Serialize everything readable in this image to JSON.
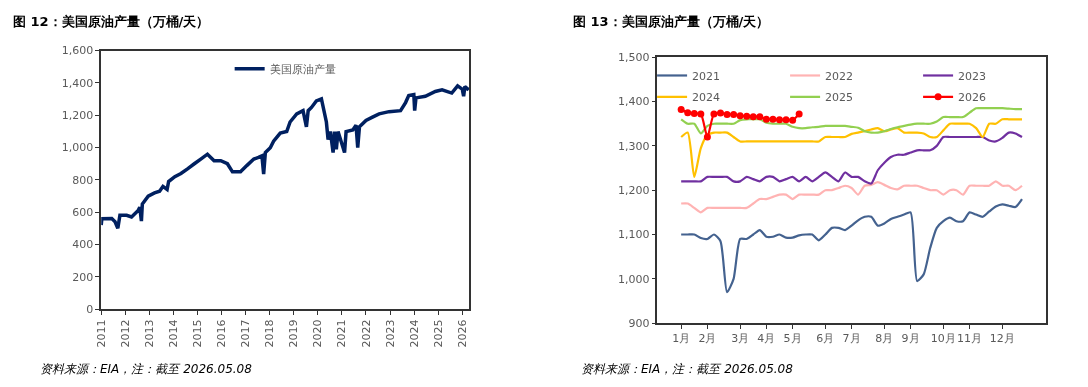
{
  "chart_data": [
    {
      "type": "line",
      "title": "图 12：美国原油产量（万桶/天）",
      "annotations": [
        "资料来源：EIA，注：截至 2026.05.08"
      ],
      "x": [
        "2011-01-01",
        "2011-01-10",
        "2011-06-10",
        "2011-07-30",
        "2011-09-10",
        "2011-10-12",
        "2012-01-22",
        "2012-04-05",
        "2012-07-15",
        "2012-08-08",
        "2012-09-02",
        "2012-09-16",
        "2012-12-14",
        "2013-03-20",
        "2013-06-05",
        "2013-07-26",
        "2013-09-27",
        "2013-10-20",
        "2014-01-22",
        "2014-04-25",
        "2014-08-08",
        "2014-11-14",
        "2015-02-20",
        "2015-06-01",
        "2015-09-10",
        "2015-12-20",
        "2016-03-30",
        "2016-06-15",
        "2016-10-15",
        "2017-01-22",
        "2017-05-05",
        "2017-07-15",
        "2017-09-05",
        "2017-10-01",
        "2017-10-27",
        "2018-01-10",
        "2018-03-01",
        "2018-06-10",
        "2018-09-16",
        "2018-11-06",
        "2019-02-15",
        "2019-05-22",
        "2019-07-12",
        "2019-08-08",
        "2019-09-27",
        "2019-12-10",
        "2020-02-25",
        "2020-05-10",
        "2020-06-05",
        "2020-07-10",
        "2020-08-20",
        "2020-09-12",
        "2020-10-08",
        "2020-11-03",
        "2021-02-10",
        "2021-03-05",
        "2021-06-15",
        "2021-08-03",
        "2021-08-29",
        "2021-09-24",
        "2022-01-01",
        "2022-04-10",
        "2022-07-20",
        "2022-12-17",
        "2023-06-10",
        "2023-08-25",
        "2023-10-12",
        "2023-12-28",
        "2024-01-10",
        "2024-01-30",
        "2024-06-20",
        "2024-11-18",
        "2025-03-01",
        "2025-07-26",
        "2025-10-23",
        "2026-01-01",
        "2026-01-22",
        "2026-02-10",
        "2026-04-10"
      ],
      "series": [
        {
          "name": "美国原油产量",
          "color": "#002060",
          "values": [
            521,
            560,
            561,
            541,
            501,
            581,
            581,
            571,
            611,
            631,
            545,
            651,
            700,
            720,
            730,
            760,
            741,
            790,
            820,
            840,
            870,
            900,
            929,
            959,
            919,
            919,
            900,
            850,
            850,
            890,
            929,
            939,
            949,
            836,
            969,
            999,
            1039,
            1089,
            1099,
            1158,
            1208,
            1228,
            1128,
            1228,
            1248,
            1288,
            1301,
            1158,
            1049,
            1099,
            969,
            1099,
            989,
            1099,
            969,
            1099,
            1109,
            1138,
            999,
            1128,
            1168,
            1188,
            1208,
            1222,
            1228,
            1278,
            1321,
            1327,
            1228,
            1307,
            1317,
            1347,
            1357,
            1337,
            1381,
            1361,
            1317,
            1377,
            1357
          ]
        }
      ],
      "xlim": [
        "2011-01-01",
        "2026-04-15"
      ],
      "xticks": [
        "2011",
        "2012",
        "2013",
        "2014",
        "2015",
        "2016",
        "2017",
        "2018",
        "2019",
        "2020",
        "2021",
        "2022",
        "2023",
        "2024",
        "2025",
        "2026"
      ],
      "ylim": [
        0,
        1600
      ],
      "yticks": [
        0,
        200,
        400,
        600,
        800,
        {
          "value": 1000,
          "label": "1,000"
        },
        {
          "value": 1200,
          "label": "1,200"
        },
        {
          "value": 1400,
          "label": "1,400"
        },
        {
          "value": 1600,
          "label": "1,600"
        }
      ],
      "legend": "top",
      "line_style": "solid"
    },
    {
      "type": "line",
      "title": "图 13：美国原油产量（万桶/天）",
      "annotations": [
        "资料来源：EIA，注：截至 2026.05.08"
      ],
      "categories": [
        "1月",
        null,
        null,
        null,
        "2月",
        null,
        null,
        null,
        null,
        "3月",
        null,
        null,
        null,
        "4月",
        null,
        null,
        null,
        "5月",
        null,
        null,
        null,
        null,
        "6月",
        null,
        null,
        null,
        "7月",
        null,
        null,
        null,
        null,
        "8月",
        null,
        null,
        null,
        "9月",
        null,
        null,
        null,
        null,
        "10月",
        null,
        null,
        null,
        "11月",
        null,
        null,
        null,
        null,
        "12月",
        null,
        null,
        null
      ],
      "series": [
        {
          "name": "2021",
          "color": "#44628f",
          "values": [
            1100,
            1100,
            1100,
            1092,
            1090,
            1100,
            1085,
            970,
            1000,
            1090,
            1090,
            1100,
            1110,
            1095,
            1095,
            1100,
            1093,
            1093,
            1098,
            1100,
            1100,
            1087,
            1100,
            1115,
            1115,
            1110,
            1120,
            1132,
            1140,
            1140,
            1120,
            1125,
            1135,
            1140,
            1145,
            1150,
            995,
            1010,
            1070,
            1115,
            1130,
            1138,
            1130,
            1130,
            1150,
            1145,
            1140,
            1152,
            1163,
            1168,
            1165,
            1162,
            1180
          ]
        },
        {
          "name": "2022",
          "color": "#ffb3b3",
          "values": [
            1170,
            1170,
            1160,
            1150,
            1160,
            1160,
            1160,
            1160,
            1160,
            1160,
            1160,
            1170,
            1180,
            1180,
            1185,
            1190,
            1190,
            1180,
            1190,
            1190,
            1190,
            1190,
            1200,
            1200,
            1205,
            1210,
            1205,
            1190,
            1210,
            1212,
            1218,
            1212,
            1205,
            1202,
            1210,
            1210,
            1210,
            1205,
            1200,
            1200,
            1190,
            1200,
            1200,
            1190,
            1210,
            1210,
            1210,
            1210,
            1220,
            1210,
            1210,
            1200,
            1210
          ]
        },
        {
          "name": "2023",
          "color": "#7030a0",
          "values": [
            1220,
            1220,
            1220,
            1220,
            1230,
            1230,
            1230,
            1230,
            1220,
            1220,
            1230,
            1225,
            1220,
            1230,
            1230,
            1220,
            1225,
            1230,
            1220,
            1230,
            1220,
            1230,
            1240,
            1230,
            1220,
            1240,
            1230,
            1230,
            1220,
            1215,
            1245,
            1262,
            1275,
            1280,
            1280,
            1285,
            1290,
            1290,
            1290,
            1300,
            1320,
            1320,
            1320,
            1320,
            1320,
            1320,
            1320,
            1312,
            1310,
            1318,
            1330,
            1328,
            1320
          ]
        },
        {
          "name": "2024",
          "color": "#ffc000",
          "values": [
            1320,
            1330,
            1230,
            1295,
            1325,
            1330,
            1330,
            1330,
            1320,
            1310,
            1310,
            1310,
            1310,
            1310,
            1310,
            1310,
            1310,
            1310,
            1310,
            1310,
            1310,
            1310,
            1320,
            1320,
            1320,
            1320,
            1327,
            1330,
            1333,
            1337,
            1340,
            1333,
            1337,
            1340,
            1330,
            1330,
            1330,
            1328,
            1320,
            1320,
            1335,
            1350,
            1350,
            1350,
            1350,
            1340,
            1320,
            1350,
            1350,
            1360,
            1360,
            1360,
            1360
          ]
        },
        {
          "name": "2025",
          "color": "#92d050",
          "values": [
            1360,
            1350,
            1350,
            1328,
            1345,
            1350,
            1350,
            1350,
            1350,
            1358,
            1360,
            1360,
            1360,
            1352,
            1350,
            1350,
            1350,
            1343,
            1340,
            1340,
            1342,
            1343,
            1345,
            1345,
            1345,
            1345,
            1343,
            1341,
            1333,
            1330,
            1330,
            1333,
            1338,
            1342,
            1345,
            1348,
            1350,
            1350,
            1350,
            1355,
            1365,
            1365,
            1365,
            1365,
            1375,
            1385,
            1385,
            1385,
            1385,
            1385,
            1384,
            1383,
            1383
          ]
        },
        {
          "name": "2026",
          "color": "#ff0000",
          "marker": "circle",
          "values": [
            1382,
            1375,
            1373,
            1372,
            1320,
            1372,
            1374,
            1371,
            1371,
            1368,
            1367,
            1366,
            1366,
            1360,
            1360,
            1359,
            1359,
            1358,
            1372,
            null,
            null,
            null,
            null,
            null,
            null,
            null,
            null,
            null,
            null,
            null,
            null,
            null,
            null,
            null,
            null,
            null,
            null,
            null,
            null,
            null,
            null,
            null,
            null,
            null,
            null,
            null,
            null,
            null,
            null,
            null,
            null,
            null,
            null
          ]
        }
      ],
      "ylim": [
        900,
        1500
      ],
      "yticks": [
        900,
        {
          "value": 1000,
          "label": "1,000"
        },
        {
          "value": 1100,
          "label": "1,100"
        },
        {
          "value": 1200,
          "label": "1,200"
        },
        {
          "value": 1300,
          "label": "1,300"
        },
        {
          "value": 1400,
          "label": "1,400"
        },
        {
          "value": 1500,
          "label": "1,500"
        }
      ],
      "legend": "top",
      "line_style": "solid"
    }
  ]
}
